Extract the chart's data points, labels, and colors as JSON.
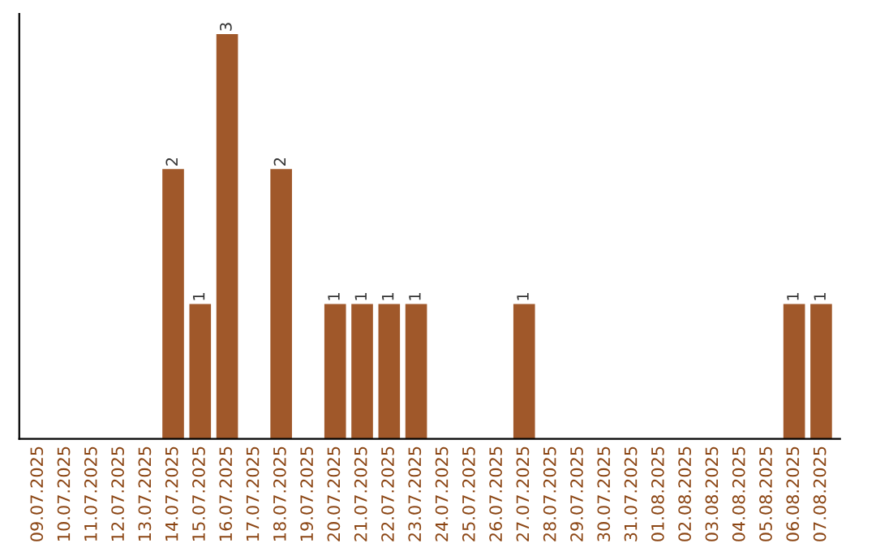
{
  "chart_data": {
    "type": "bar",
    "categories": [
      "09.07.2025",
      "10.07.2025",
      "11.07.2025",
      "12.07.2025",
      "13.07.2025",
      "14.07.2025",
      "15.07.2025",
      "16.07.2025",
      "17.07.2025",
      "18.07.2025",
      "19.07.2025",
      "20.07.2025",
      "21.07.2025",
      "22.07.2025",
      "23.07.2025",
      "24.07.2025",
      "25.07.2025",
      "26.07.2025",
      "27.07.2025",
      "28.07.2025",
      "29.07.2025",
      "30.07.2025",
      "31.07.2025",
      "01.08.2025",
      "02.08.2025",
      "03.08.2025",
      "04.08.2025",
      "05.08.2025",
      "06.08.2025",
      "07.08.2025"
    ],
    "values": [
      0,
      0,
      0,
      0,
      0,
      2,
      1,
      3,
      0,
      2,
      0,
      1,
      1,
      1,
      1,
      0,
      0,
      0,
      1,
      0,
      0,
      0,
      0,
      0,
      0,
      0,
      0,
      0,
      1,
      1
    ],
    "value_labels": [
      null,
      null,
      null,
      null,
      null,
      "2",
      "1",
      "3",
      null,
      "2",
      null,
      "1",
      "1",
      "1",
      "1",
      null,
      null,
      null,
      "1",
      null,
      null,
      null,
      null,
      null,
      null,
      null,
      null,
      null,
      "1",
      "1"
    ],
    "color": "#a0582a",
    "tick_labels": "x",
    "grid": false,
    "legend": false
  }
}
